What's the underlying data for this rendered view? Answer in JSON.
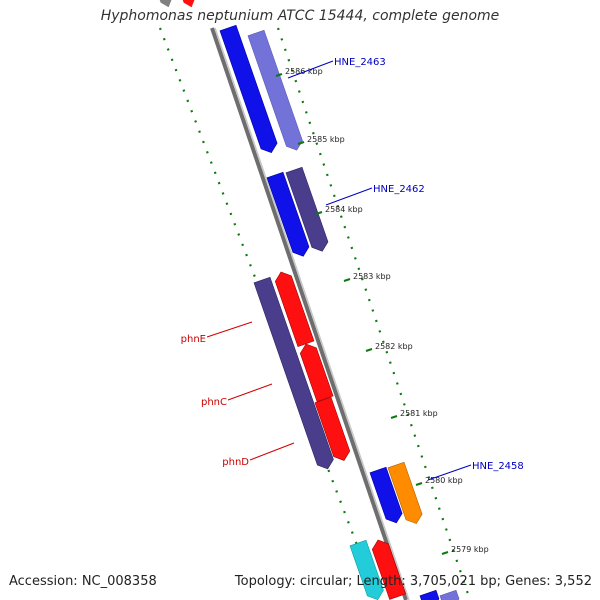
{
  "title": "Hyphomonas neptunium ATCC 15444, complete genome",
  "footer": {
    "accession": "Accession: NC_008358",
    "summary": "Topology: circular; Length: 3,705,021 bp; Genes: 3,552"
  },
  "colors": {
    "blue": "#1010e8",
    "light_blue": "#7272d8",
    "dark_purple": "#4a3d8c",
    "red": "#ff1010",
    "orange": "#ff8c00",
    "cyan": "#22ccd8",
    "backbone": "#808080",
    "tick_green": "#0d7a0d",
    "label_blue": "#0000c0",
    "label_red": "#cc0000"
  },
  "ticks": [
    "2586 kbp",
    "2585 kbp",
    "2584 kbp",
    "2583 kbp",
    "2582 kbp",
    "2581 kbp",
    "2580 kbp",
    "2579 kbp"
  ],
  "gene_labels": [
    {
      "name": "HNE_2463",
      "color": "label_blue"
    },
    {
      "name": "HNE_2462",
      "color": "label_blue"
    },
    {
      "name": "HNE_2458",
      "color": "label_blue"
    },
    {
      "name": "phnE",
      "color": "label_red"
    },
    {
      "name": "phnC",
      "color": "label_red"
    },
    {
      "name": "phnD",
      "color": "label_red"
    }
  ]
}
